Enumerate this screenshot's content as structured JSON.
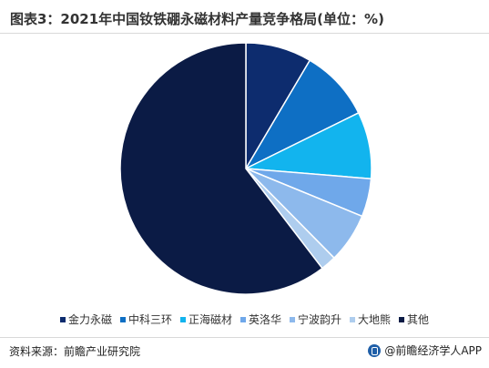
{
  "header": {
    "title": "图表3：2021年中国钕铁硼永磁材料产量竞争格局(单位：%)"
  },
  "chart_data": {
    "type": "pie",
    "title": "图表3：2021年中国钕铁硼永磁材料产量竞争格局(单位：%)",
    "unit": "%",
    "legend_position": "bottom",
    "slices": [
      {
        "label": "金力永磁",
        "value": 8.5,
        "color": "#0d2c6e"
      },
      {
        "label": "中科三环",
        "value": 9.2,
        "color": "#0e6fc4"
      },
      {
        "label": "正海磁材",
        "value": 8.6,
        "color": "#12b4ee"
      },
      {
        "label": "英洛华",
        "value": 4.9,
        "color": "#6fa8ea"
      },
      {
        "label": "宁波韵升",
        "value": 6.4,
        "color": "#8db9ec"
      },
      {
        "label": "大地熊",
        "value": 2.0,
        "color": "#aecdee"
      },
      {
        "label": "其他",
        "value": 60.4,
        "color": "#0b1b45"
      }
    ]
  },
  "footer": {
    "source": "资料来源：前瞻产业研究院",
    "brand": "@前瞻经济学人APP"
  }
}
